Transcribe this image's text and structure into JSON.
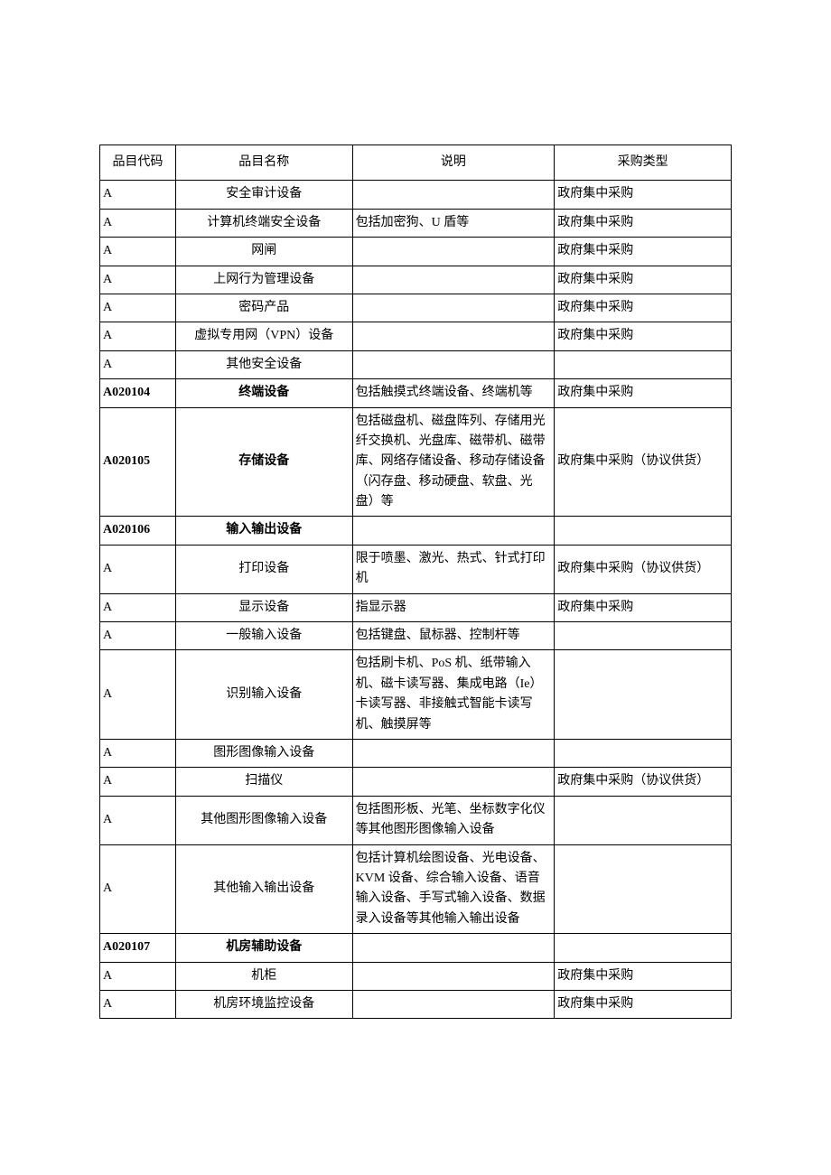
{
  "table": {
    "headers": [
      "品目代码",
      "品目名称",
      "说明",
      "采购类型"
    ],
    "rows": [
      {
        "code": "A",
        "name": "安全审计设备",
        "desc": "",
        "type": "政府集中采购",
        "bold": false,
        "descAlign": "bottom"
      },
      {
        "code": "A",
        "name": "计算机终端安全设备",
        "desc": "包括加密狗、U 盾等",
        "type": "政府集中采购",
        "bold": false,
        "descAlign": "mid"
      },
      {
        "code": "A",
        "name": "网闸",
        "desc": "",
        "type": "政府集中采购",
        "bold": false,
        "descAlign": "bottom"
      },
      {
        "code": "A",
        "name": "上网行为管理设备",
        "desc": "",
        "type": "政府集中采购",
        "bold": false,
        "descAlign": "bottom"
      },
      {
        "code": "A",
        "name": "密码产品",
        "desc": "",
        "type": "政府集中采购",
        "bold": false,
        "descAlign": "bottom"
      },
      {
        "code": "A",
        "name": "虚拟专用网（VPN）设备",
        "desc": "",
        "type": "政府集中采购",
        "bold": false,
        "descAlign": "bottom"
      },
      {
        "code": "A",
        "name": "其他安全设备",
        "desc": "",
        "type": "",
        "bold": false,
        "descAlign": "bottom"
      },
      {
        "code": "A020104",
        "name": "终端设备",
        "desc": "包括触摸式终端设备、终端机等",
        "type": "政府集中采购",
        "bold": true,
        "descAlign": "bottom"
      },
      {
        "code": "A020105",
        "name": "存储设备",
        "desc": "包括磁盘机、磁盘阵列、存储用光纤交换机、光盘库、磁带机、磁带库、网络存储设备、移动存储设备（闪存盘、移动硬盘、软盘、光盘）等",
        "type": "政府集中采购（协议供货）",
        "bold": true,
        "descAlign": "mid"
      },
      {
        "code": "A020106",
        "name": "输入输出设备",
        "desc": "",
        "type": "",
        "bold": true,
        "descAlign": "bottom"
      },
      {
        "code": "A",
        "name": "打印设备",
        "desc": "限于喷墨、激光、热式、针式打印机",
        "type": "政府集中采购（协议供货）",
        "bold": false,
        "descAlign": "mid"
      },
      {
        "code": "A",
        "name": "显示设备",
        "desc": "指显示器",
        "type": "政府集中采购",
        "bold": false,
        "descAlign": "mid"
      },
      {
        "code": "A",
        "name": "一般输入设备",
        "desc": "包括键盘、鼠标器、控制杆等",
        "type": "",
        "bold": false,
        "descAlign": "mid"
      },
      {
        "code": "A",
        "name": "识别输入设备",
        "desc": "包括刷卡机、PoS 机、纸带输入机、磁卡读写器、集成电路（Ie）卡读写器、非接触式智能卡读写机、触摸屏等",
        "type": "",
        "bold": false,
        "descAlign": "mid"
      },
      {
        "code": "A",
        "name": "图形图像输入设备",
        "desc": "",
        "type": "",
        "bold": false,
        "descAlign": "bottom"
      },
      {
        "code": "A",
        "name": "扫描仪",
        "desc": "",
        "type": "政府集中采购（协议供货）",
        "bold": false,
        "descAlign": "bottom"
      },
      {
        "code": "A",
        "name": "其他图形图像输入设备",
        "desc": "包括图形板、光笔、坐标数字化仪等其他图形图像输入设备",
        "type": "",
        "bold": false,
        "descAlign": "bottom"
      },
      {
        "code": "A",
        "name": "其他输入输出设备",
        "desc": "包括计算机绘图设备、光电设备、KVM 设备、综合输入设备、语音输入设备、手写式输入设备、数据录入设备等其他输入输出设备",
        "type": "",
        "bold": false,
        "descAlign": "bottom"
      },
      {
        "code": "A020107",
        "name": "机房辅助设备",
        "desc": "",
        "type": "",
        "bold": true,
        "descAlign": "bottom"
      },
      {
        "code": "A",
        "name": "机柜",
        "desc": "",
        "type": "政府集中采购",
        "bold": false,
        "descAlign": "bottom"
      },
      {
        "code": "A",
        "name": "机房环境监控设备",
        "desc": "",
        "type": "政府集中采购",
        "bold": false,
        "descAlign": "bottom"
      }
    ],
    "styling": {
      "border_color": "#000000",
      "background_color": "#ffffff",
      "font_family": "SimSun",
      "font_size": 14,
      "column_widths_pct": [
        12,
        28,
        32,
        28
      ],
      "header_align": "center",
      "code_align": "left",
      "name_align": "center",
      "desc_align": "left",
      "type_align": "left"
    }
  }
}
